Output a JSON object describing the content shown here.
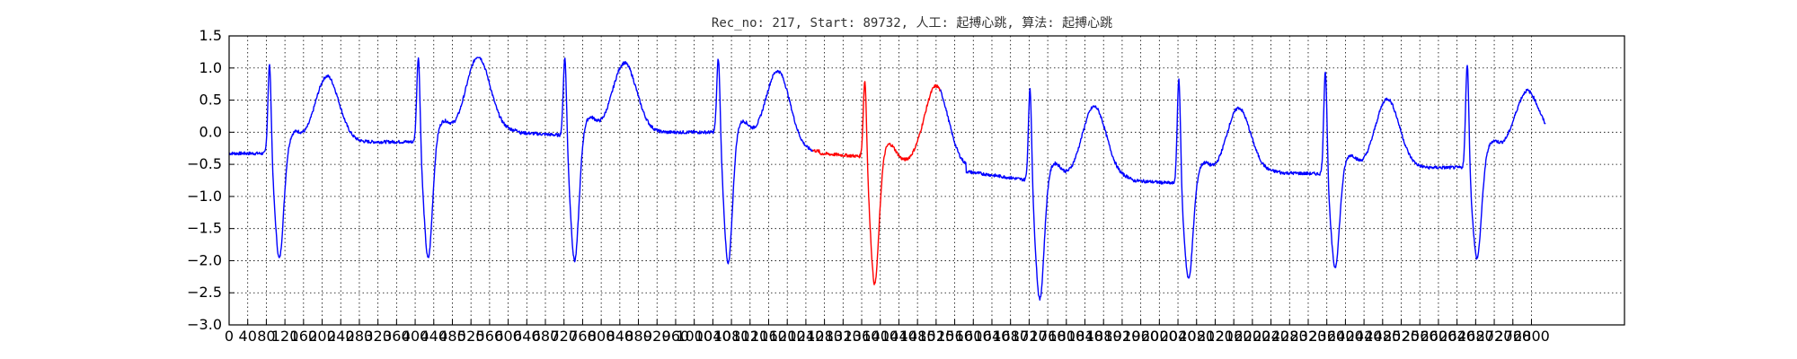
{
  "chart_data": {
    "type": "line",
    "title": "Rec_no: 217, Start: 89732, 人工: 起搏心跳, 算法: 起搏心跳",
    "xlabel": "",
    "ylabel": "",
    "xlim": [
      0,
      3000
    ],
    "ylim": [
      -3.0,
      1.5
    ],
    "grid": true,
    "x_tick_step": 40,
    "x_tick_last": 2800,
    "y_ticks": [
      "1.5",
      "1.0",
      "0.5",
      "0.0",
      "−0.5",
      "−1.0",
      "−1.5",
      "−2.0",
      "−2.5",
      "−3.0"
    ],
    "y_tick_values": [
      1.5,
      1.0,
      0.5,
      0.0,
      -0.5,
      -1.0,
      -1.5,
      -2.0,
      -2.5,
      -3.0
    ],
    "x_sample_end": 2830,
    "beats": [
      {
        "spike": 85,
        "peak": 1.15,
        "trough": -1.98,
        "t_peak": 0.88,
        "t_time": 210,
        "base_before": -0.33,
        "base_after": -0.15,
        "color": "blue"
      },
      {
        "spike": 405,
        "peak": 1.28,
        "trough": -1.98,
        "t_peak": 1.18,
        "t_time": 535,
        "base_before": -0.15,
        "base_after": 0.02,
        "color": "blue"
      },
      {
        "spike": 720,
        "peak": 1.28,
        "trough": -2.02,
        "t_peak": 1.08,
        "t_time": 850,
        "base_before": -0.05,
        "base_after": 0.0,
        "color": "blue"
      },
      {
        "spike": 1050,
        "peak": 1.27,
        "trough": -2.07,
        "t_peak": 0.95,
        "t_time": 1180,
        "base_before": 0.0,
        "base_after": -0.3,
        "color": "blue"
      },
      {
        "spike": 1365,
        "peak": 0.92,
        "trough": -2.38,
        "t_peak": 0.72,
        "t_time": 1520,
        "base_before": -0.38,
        "base_after": -0.55,
        "color": "red"
      },
      {
        "spike": 1720,
        "peak": 0.78,
        "trough": -2.62,
        "t_peak": 0.4,
        "t_time": 1860,
        "base_before": -0.75,
        "base_after": -0.72,
        "color": "blue"
      },
      {
        "spike": 2040,
        "peak": 0.92,
        "trough": -2.3,
        "t_peak": 0.38,
        "t_time": 2170,
        "base_before": -0.8,
        "base_after": -0.62,
        "color": "blue"
      },
      {
        "spike": 2355,
        "peak": 1.05,
        "trough": -2.12,
        "t_peak": 0.52,
        "t_time": 2490,
        "base_before": -0.65,
        "base_after": -0.55,
        "color": "blue"
      },
      {
        "spike": 2660,
        "peak": 1.15,
        "trough": -1.98,
        "t_peak": 0.65,
        "t_time": 2790,
        "base_before": -0.55,
        "base_after": -0.1,
        "color": "blue"
      }
    ],
    "series_colors": {
      "blue": "#0000ff",
      "red": "#ff0000"
    }
  }
}
